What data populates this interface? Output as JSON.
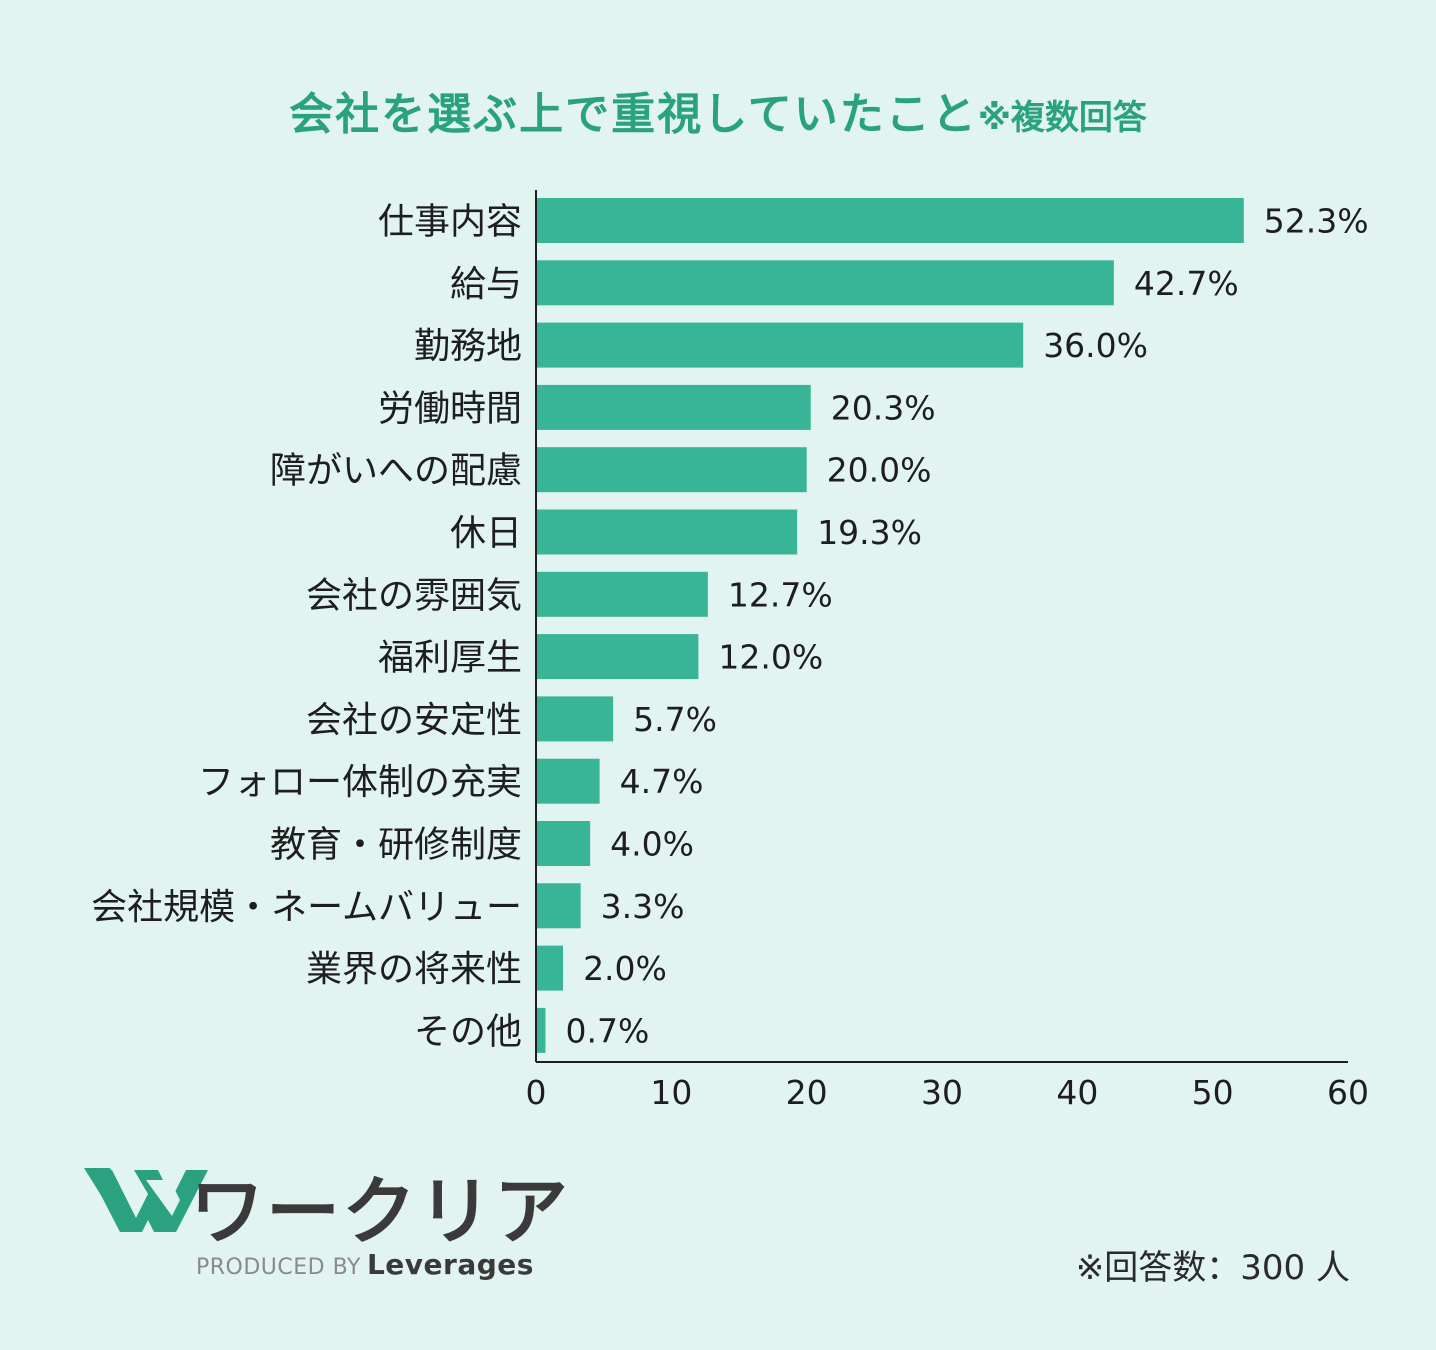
{
  "title": {
    "main": "会社を選ぶ上で重視していたこと",
    "note": "※複数回答"
  },
  "chart_data": {
    "type": "bar",
    "orientation": "horizontal",
    "categories": [
      "仕事内容",
      "給与",
      "勤務地",
      "労働時間",
      "障がいへの配慮",
      "休日",
      "会社の雰囲気",
      "福利厚生",
      "会社の安定性",
      "フォロー体制の充実",
      "教育・研修制度",
      "会社規模・ネームバリュー",
      "業界の将来性",
      "その他"
    ],
    "values": [
      52.3,
      42.7,
      36.0,
      20.3,
      20.0,
      19.3,
      12.7,
      12.0,
      5.7,
      4.7,
      4.0,
      3.3,
      2.0,
      0.7
    ],
    "value_labels": [
      "52.3%",
      "42.7%",
      "36.0%",
      "20.3%",
      "20.0%",
      "19.3%",
      "12.7%",
      "12.0%",
      "5.7%",
      "4.7%",
      "4.0%",
      "3.3%",
      "2.0%",
      "0.7%"
    ],
    "xlim": [
      0,
      60
    ],
    "xticks": [
      "0",
      "10",
      "20",
      "30",
      "40",
      "50",
      "60"
    ],
    "grid": false,
    "bar_color": "#38b496"
  },
  "logo": {
    "text": "ワークリア",
    "produced_by": "PRODUCED BY",
    "brand": "Leverages",
    "color": "#2aa17f"
  },
  "footnote": "※回答数：300 人"
}
